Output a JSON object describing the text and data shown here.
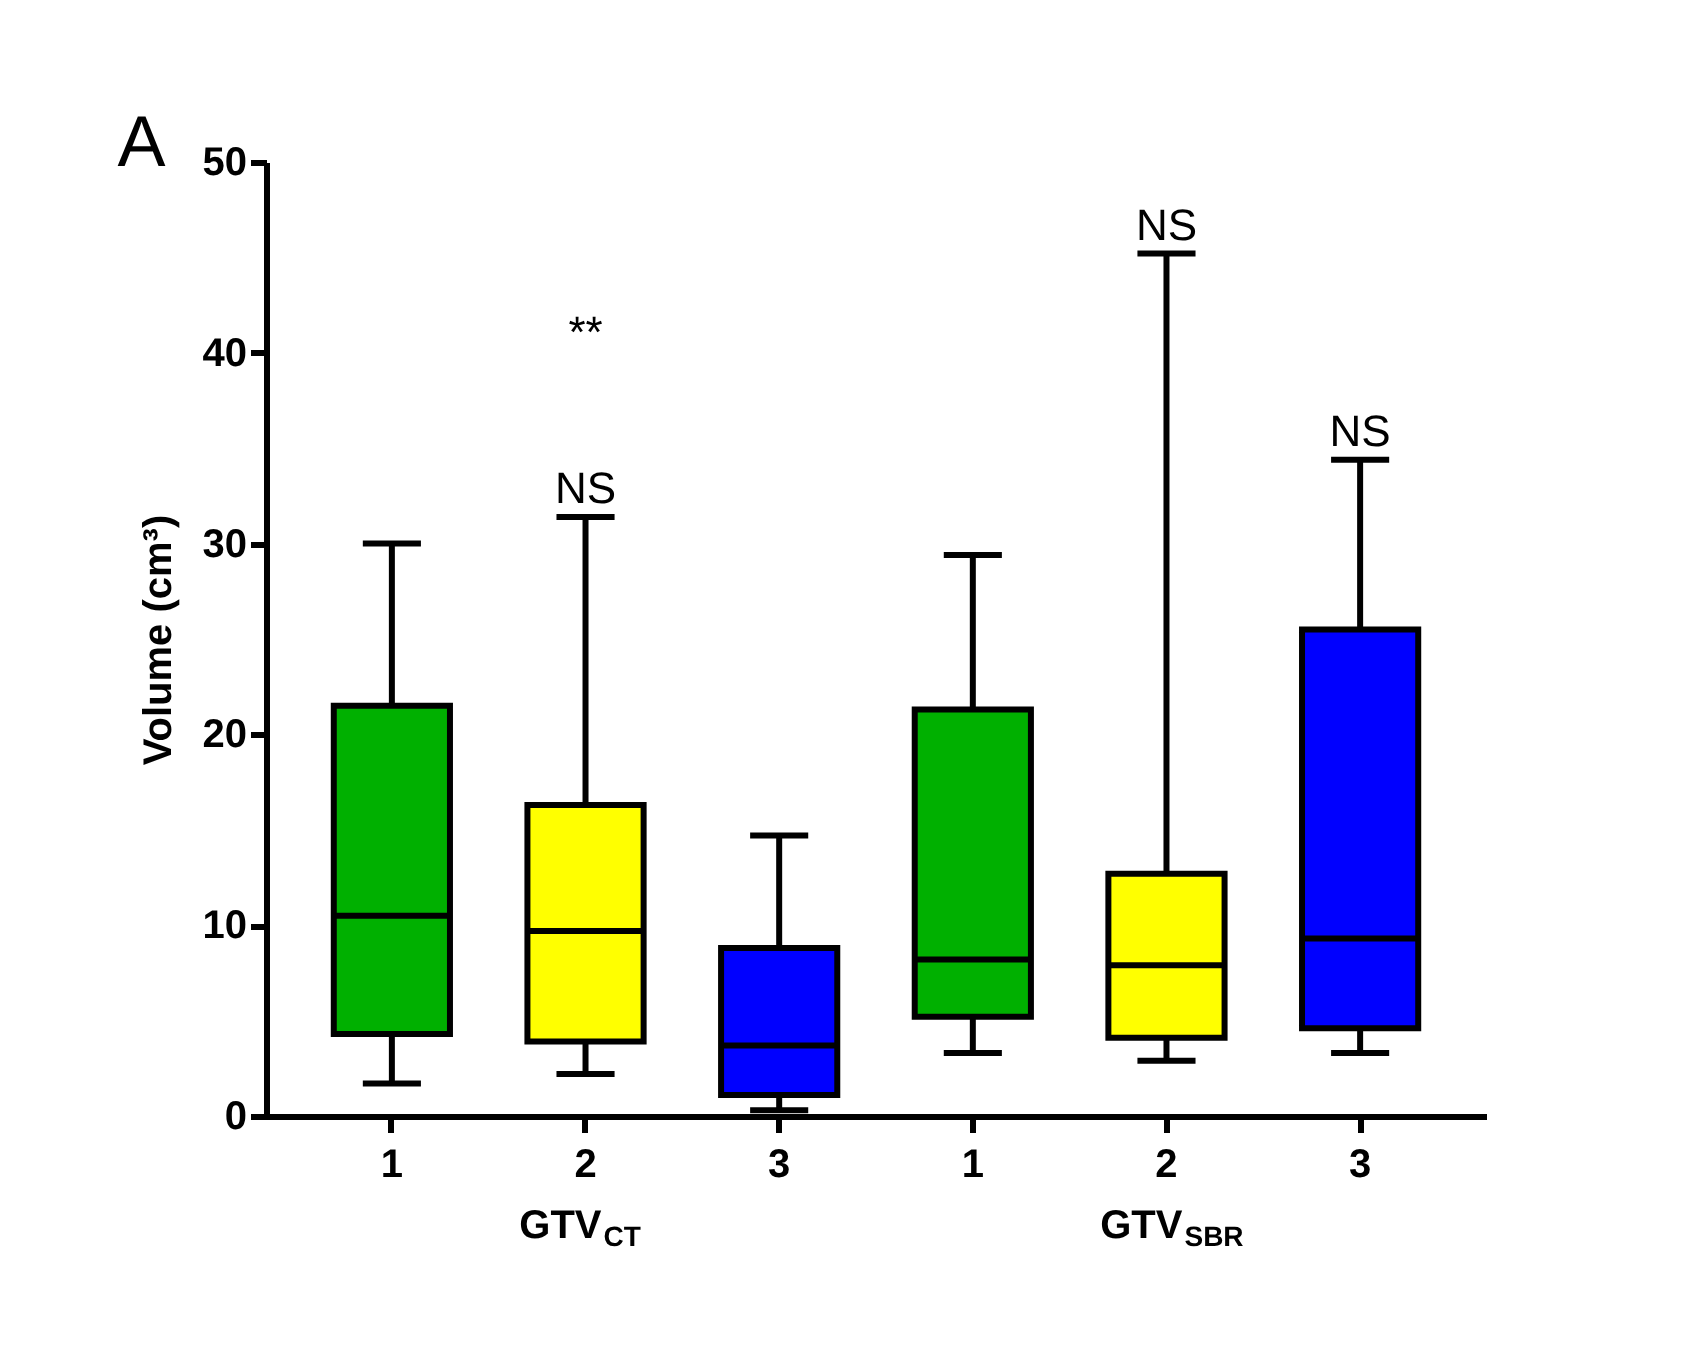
{
  "chart_data": {
    "type": "box",
    "title": "A",
    "ylabel": "Volume (cm³)",
    "categories": [
      "1",
      "2",
      "3",
      "1",
      "2",
      "3"
    ],
    "colors": [
      "#00b000",
      "#ffff00",
      "#0000ff",
      "#00b000",
      "#ffff00",
      "#0000ff"
    ],
    "boxes": [
      {
        "low": 1.7,
        "q1": 4.3,
        "median": 10.5,
        "q3": 21.5,
        "high": 30
      },
      {
        "low": 2.2,
        "q1": 3.9,
        "median": 9.7,
        "q3": 16.3,
        "high": 31.4
      },
      {
        "low": 0.3,
        "q1": 1.1,
        "median": 3.7,
        "q3": 8.8,
        "high": 14.7
      },
      {
        "low": 3.3,
        "q1": 5.2,
        "median": 8.2,
        "q3": 21.3,
        "high": 29.4
      },
      {
        "low": 2.9,
        "q1": 4.1,
        "median": 7.9,
        "q3": 12.7,
        "high": 45.2
      },
      {
        "low": 3.3,
        "q1": 4.6,
        "median": 9.3,
        "q3": 25.5,
        "high": 34.4
      }
    ],
    "ylim": [
      0,
      50
    ],
    "yticks": [
      0,
      10,
      20,
      30,
      40,
      50
    ],
    "grid": false,
    "annotations": [
      "**",
      "NS",
      "NS",
      "NS",
      "GTV$_{CT}$",
      "GTV$_{SBR}$"
    ]
  }
}
